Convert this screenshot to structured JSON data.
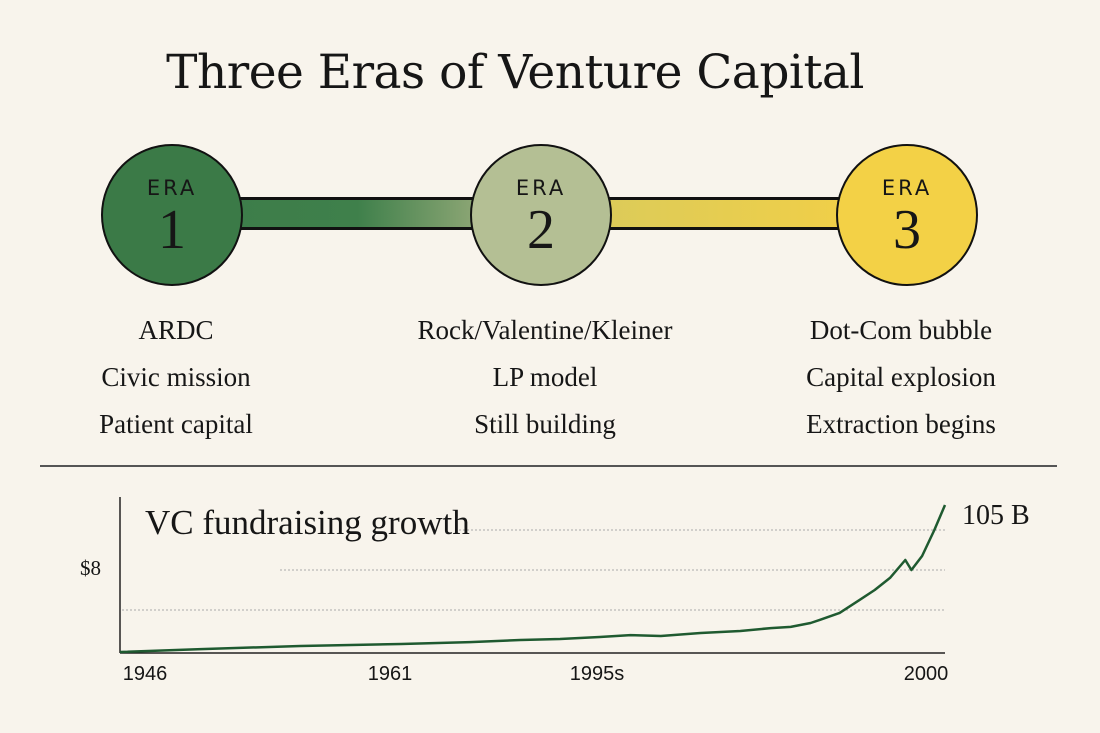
{
  "title": "Three Eras of Venture Capital",
  "eras": [
    {
      "word": "ERA",
      "number": "1",
      "color": "#3b7a47",
      "lines": [
        "ARDC",
        "Civic mission",
        "Patient capital"
      ]
    },
    {
      "word": "ERA",
      "number": "2",
      "color": "#b4bf94",
      "lines": [
        "Rock/Valentine/Kleiner",
        "LP model",
        "Still building"
      ]
    },
    {
      "word": "ERA",
      "number": "3",
      "color": "#f3d146",
      "lines": [
        "Dot-Com bubble",
        "Capital explosion",
        "Extraction begins"
      ]
    }
  ],
  "chart_data": {
    "type": "line",
    "title": "VC fundraising growth",
    "y_tick_label": "$8",
    "end_label": "105 B",
    "x_tick_labels": [
      "1946",
      "1961",
      "1995s",
      "2000"
    ],
    "xlim": [
      1946,
      2000
    ],
    "ylim": [
      0,
      105
    ],
    "grid": "dotted horizontal",
    "line_color": "#1f5a30",
    "points": [
      [
        1946,
        0
      ],
      [
        1951.3,
        2.1
      ],
      [
        1957.8,
        4.3
      ],
      [
        1964.4,
        5.7
      ],
      [
        1968.9,
        7.1
      ],
      [
        1972.2,
        8.6
      ],
      [
        1974.8,
        9.3
      ],
      [
        1977.4,
        10.7
      ],
      [
        1979.4,
        12.1
      ],
      [
        1981.4,
        11.4
      ],
      [
        1984,
        13.6
      ],
      [
        1986.6,
        15
      ],
      [
        1988.6,
        17.1
      ],
      [
        1989.9,
        17.9
      ],
      [
        1991.2,
        20.7
      ],
      [
        1991.8,
        22.9
      ],
      [
        1993.1,
        27.9
      ],
      [
        1994.4,
        37.1
      ],
      [
        1995.4,
        44.3
      ],
      [
        1996.4,
        52.9
      ],
      [
        1997.4,
        65.7
      ],
      [
        1997.8,
        58.6
      ],
      [
        1998.5,
        68.6
      ],
      [
        1999.3,
        87.1
      ],
      [
        2000,
        105
      ]
    ]
  }
}
